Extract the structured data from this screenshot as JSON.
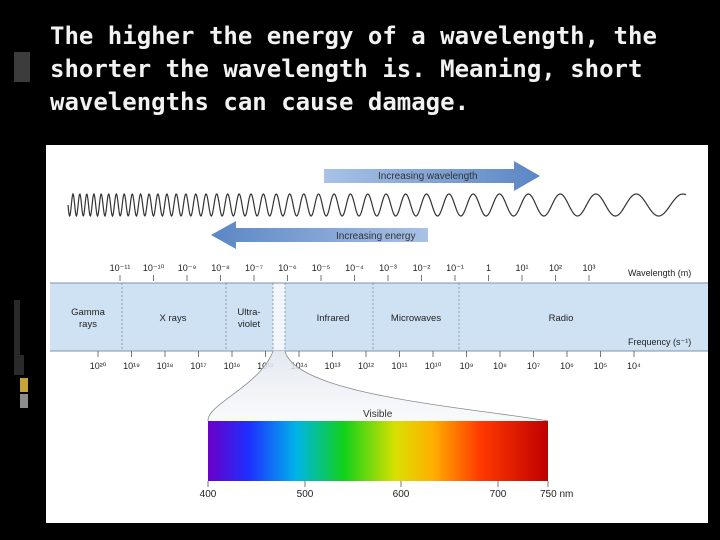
{
  "slide": {
    "title_parts": [
      {
        "text": "The ",
        "bold": false
      },
      {
        "text": "higher",
        "bold": true
      },
      {
        "text": " the energy of a ",
        "bold": false
      },
      {
        "text": "wavelength",
        "bold": true
      },
      {
        "text": ", the ",
        "bold": false
      },
      {
        "text": "shorter",
        "bold": true
      },
      {
        "text": " the wavelength is. Meaning, ",
        "bold": false
      },
      {
        "text": "short",
        "bold": true
      },
      {
        "text": " wavelengths can cause damage.",
        "bold": false
      }
    ]
  },
  "diagram": {
    "increasing_wavelength_label": "Increasing wavelength",
    "increasing_energy_label": "Increasing energy",
    "wavelength_axis_label": "Wavelength (m)",
    "frequency_axis_label": "Frequency (s⁻¹)",
    "wavelength_ticks": [
      "10⁻¹¹",
      "10⁻¹⁰",
      "10⁻⁹",
      "10⁻⁸",
      "10⁻⁷",
      "10⁻⁶",
      "10⁻⁵",
      "10⁻⁴",
      "10⁻³",
      "10⁻²",
      "10⁻¹",
      "1",
      "10¹",
      "10²",
      "10³"
    ],
    "frequency_ticks": [
      "10²⁰",
      "10¹⁹",
      "10¹⁸",
      "10¹⁷",
      "10¹⁶",
      "10¹⁵",
      "10¹⁴",
      "10¹³",
      "10¹²",
      "10¹¹",
      "10¹⁰",
      "10⁹",
      "10⁸",
      "10⁷",
      "10⁶",
      "10⁵",
      "10⁴"
    ],
    "regions": [
      {
        "lines": [
          "Gamma",
          "rays"
        ]
      },
      {
        "lines": [
          "X rays"
        ]
      },
      {
        "lines": [
          "Ultra-",
          "violet"
        ]
      },
      {
        "lines": [
          "Infrared"
        ]
      },
      {
        "lines": [
          "Microwaves"
        ]
      },
      {
        "lines": [
          "Radio"
        ]
      }
    ],
    "visible_label": "Visible",
    "visible_ticks": [
      "400",
      "500",
      "600",
      "700",
      "750 nm"
    ],
    "colors": {
      "arrow": "#5b86c4",
      "band": "#cfe2f3",
      "wave": "#333333"
    }
  }
}
